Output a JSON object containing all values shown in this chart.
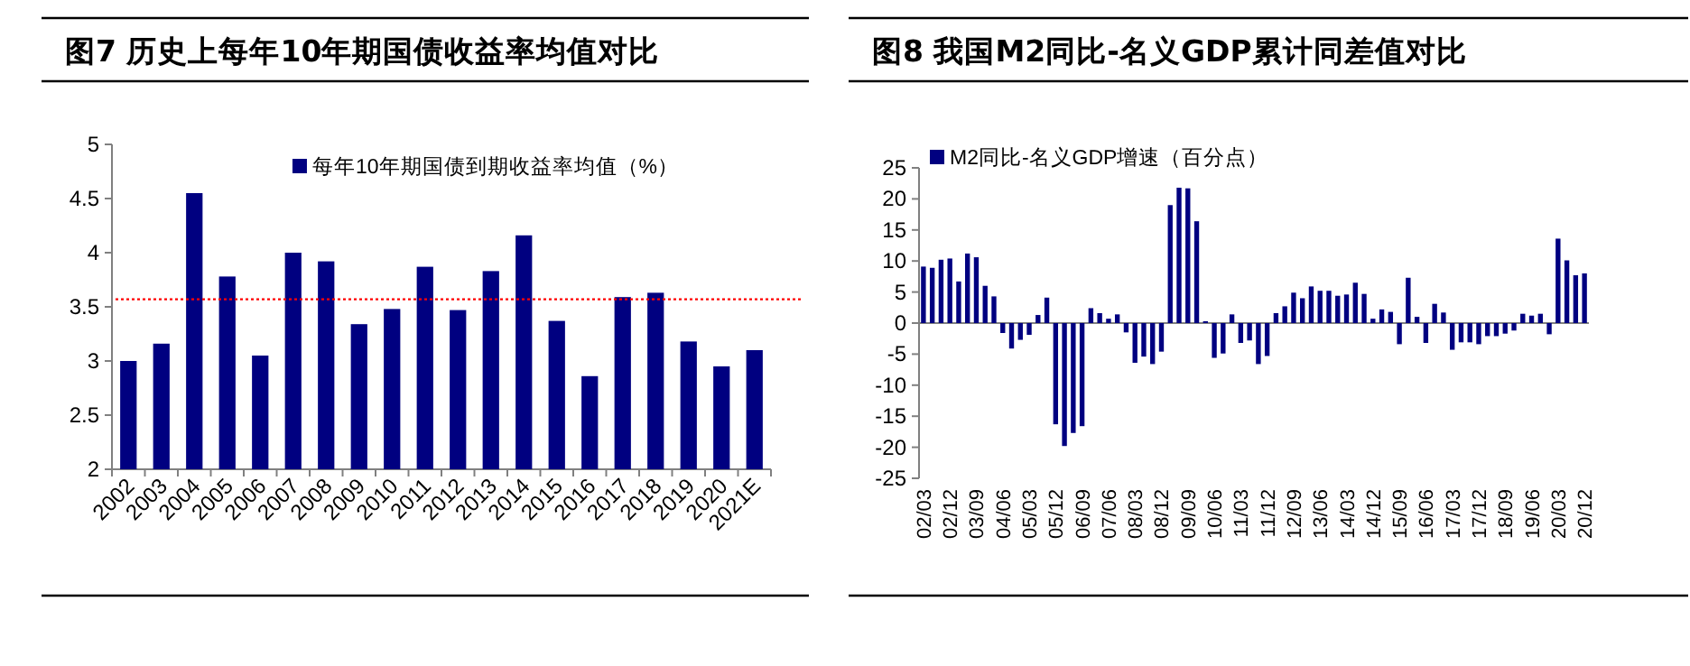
{
  "chart_data": [
    {
      "type": "bar",
      "title": "图7  历史上每年10年期国债收益率均值对比",
      "categories": [
        "2002",
        "2003",
        "2004",
        "2005",
        "2006",
        "2007",
        "2008",
        "2009",
        "2010",
        "2011",
        "2012",
        "2013",
        "2014",
        "2015",
        "2016",
        "2017",
        "2018",
        "2019",
        "2020",
        "2021E"
      ],
      "series": [
        {
          "name": "每年10年期国债到期收益率均值（%）",
          "color": "#000080",
          "values": [
            3.0,
            3.16,
            4.55,
            3.78,
            3.05,
            4.0,
            3.92,
            3.34,
            3.48,
            3.87,
            3.47,
            3.83,
            4.16,
            3.37,
            2.86,
            3.59,
            3.63,
            3.18,
            2.95,
            3.1
          ]
        }
      ],
      "ylim": [
        2,
        5
      ],
      "yticks": [
        2,
        2.5,
        3,
        3.5,
        4,
        4.5,
        5
      ],
      "ref_lines": [
        {
          "axis": "y",
          "value": 3.57,
          "color": "#ff0000",
          "line_style": "dotted"
        }
      ],
      "legend": "top"
    },
    {
      "type": "bar",
      "title": "图8  我国M2同比-名义GDP累计同差值对比",
      "categories": [
        "02/03",
        null,
        null,
        "02/12",
        null,
        null,
        "03/09",
        null,
        null,
        "04/06",
        null,
        null,
        "05/03",
        null,
        null,
        "05/12",
        null,
        null,
        "06/09",
        null,
        null,
        "07/06",
        null,
        null,
        "08/03",
        null,
        null,
        "08/12",
        null,
        null,
        "09/09",
        null,
        null,
        "10/06",
        null,
        null,
        "11/03",
        null,
        null,
        "11/12",
        null,
        null,
        "12/09",
        null,
        null,
        "13/06",
        null,
        null,
        "14/03",
        null,
        null,
        "14/12",
        null,
        null,
        "15/09",
        null,
        null,
        "16/06",
        null,
        null,
        "17/03",
        null,
        null,
        "17/12",
        null,
        null,
        "18/09",
        null,
        null,
        "19/06",
        null,
        null,
        "20/03",
        null,
        null,
        "20/12"
      ],
      "series": [
        {
          "name": "M2同比-名义GDP增速（百分点）",
          "color": "#000080",
          "values": [
            9.1,
            8.9,
            10.2,
            10.4,
            6.7,
            11.2,
            10.6,
            6.0,
            4.3,
            -1.6,
            -4.1,
            -2.7,
            -1.9,
            1.3,
            4.1,
            -16.3,
            -19.8,
            -17.7,
            -16.6,
            2.4,
            1.6,
            0.7,
            1.4,
            -1.5,
            -6.4,
            -5.4,
            -6.6,
            -4.6,
            19.0,
            21.8,
            21.7,
            16.4,
            0.3,
            -5.6,
            -4.9,
            1.4,
            -3.2,
            -2.8,
            -6.6,
            -5.3,
            1.6,
            2.7,
            4.9,
            4.0,
            5.9,
            5.2,
            5.2,
            4.4,
            4.6,
            6.5,
            4.7,
            0.7,
            2.2,
            1.8,
            -3.4,
            7.3,
            1.0,
            -3.2,
            3.1,
            1.7,
            -4.3,
            -3.1,
            -3.1,
            -3.4,
            -2.1,
            -2.1,
            -1.7,
            -1.2,
            1.5,
            1.2,
            1.5,
            -1.8,
            13.6,
            10.1,
            7.7,
            8.0
          ]
        }
      ],
      "ylim": [
        -25,
        25
      ],
      "yticks": [
        -25,
        -20,
        -15,
        -10,
        -5,
        0,
        5,
        10,
        15,
        20,
        25
      ],
      "legend": "top left"
    }
  ]
}
